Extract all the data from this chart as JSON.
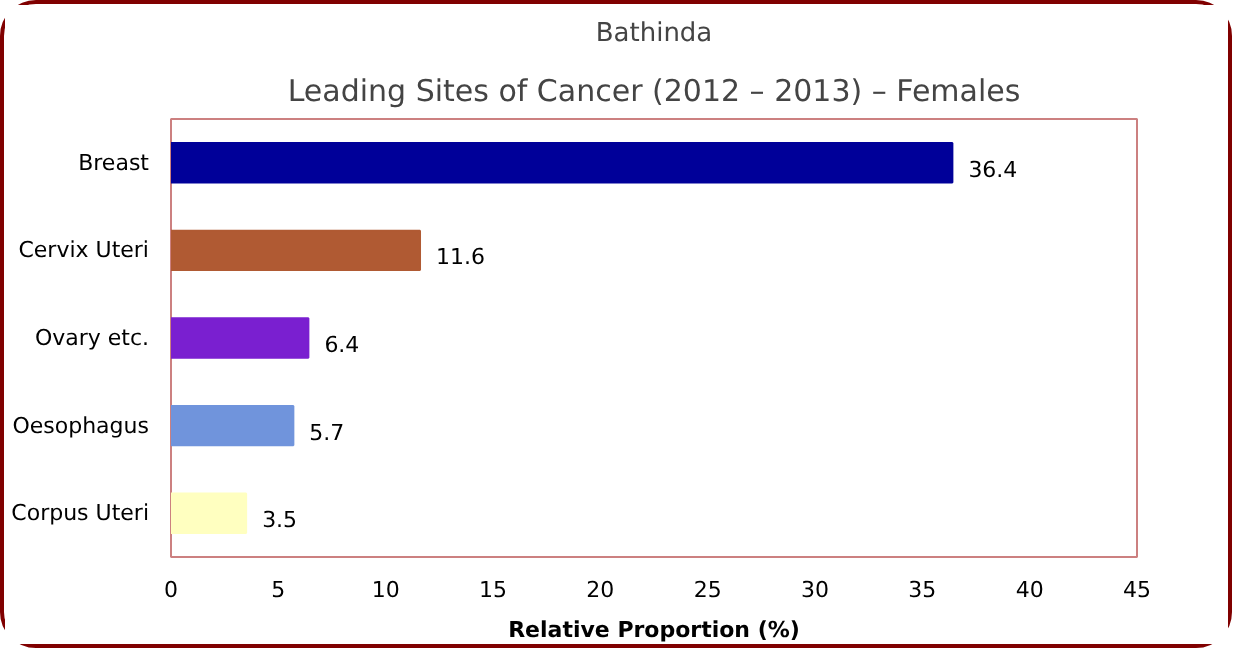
{
  "chart_data": {
    "type": "bar",
    "orientation": "horizontal",
    "title": "Bathinda",
    "subtitle": "Leading Sites of Cancer (2012 – 2013) – Females",
    "categories": [
      "Breast",
      "Cervix Uteri",
      "Ovary etc.",
      "Oesophagus",
      "Corpus Uteri"
    ],
    "values": [
      36.4,
      11.6,
      6.4,
      5.7,
      3.5
    ],
    "colors": [
      "#000099",
      "#b05a33",
      "#7a1fd0",
      "#7094dc",
      "#ffffc0"
    ],
    "xlabel": "Relative Proportion (%)",
    "xlim": [
      0,
      45
    ],
    "xticks": [
      0,
      5,
      10,
      15,
      20,
      25,
      30,
      35,
      40,
      45
    ],
    "grid": false,
    "data_labels": true
  }
}
